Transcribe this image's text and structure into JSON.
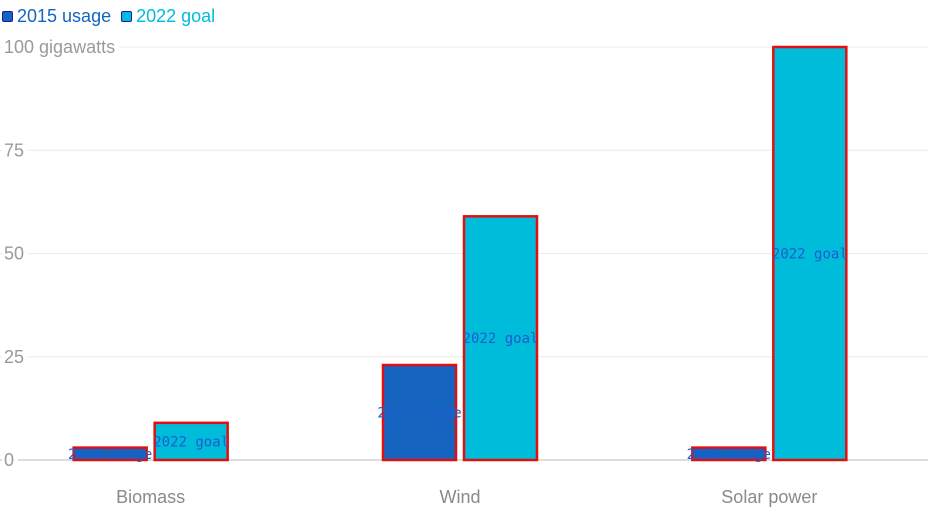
{
  "chart_data": {
    "type": "bar",
    "categories": [
      "Biomass",
      "Wind",
      "Solar power"
    ],
    "series": [
      {
        "name": "2015 usage",
        "values": [
          3,
          23,
          3
        ],
        "color": "#1565c0"
      },
      {
        "name": "2022 goal",
        "values": [
          9,
          59,
          100
        ],
        "color": "#00bcdb"
      }
    ],
    "y_ticks": [
      {
        "value": 0,
        "label": "0"
      },
      {
        "value": 25,
        "label": "25"
      },
      {
        "value": 50,
        "label": "50"
      },
      {
        "value": 75,
        "label": "75"
      },
      {
        "value": 100,
        "label": "100 gigawatts"
      }
    ],
    "ylim": [
      0,
      100
    ],
    "legend_position": "top-left",
    "grid": true,
    "bar_outline_color": "#e01010"
  }
}
